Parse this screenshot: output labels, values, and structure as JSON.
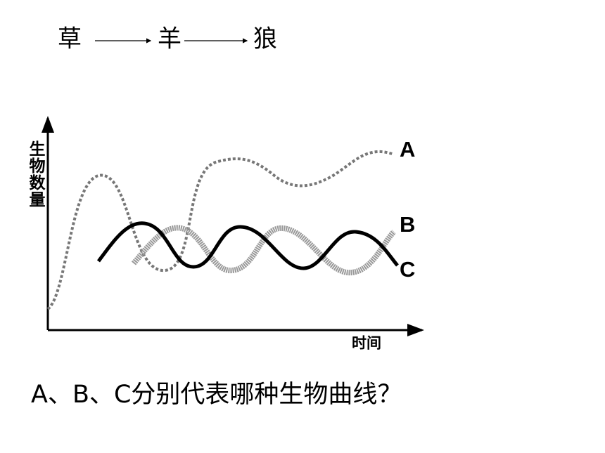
{
  "food_chain": [
    "草",
    "羊",
    "狼"
  ],
  "graph": {
    "y_label": "生物数量",
    "x_label": "时间",
    "curve_labels": [
      "A",
      "B",
      "C"
    ]
  },
  "question": "A、B、C分别代表哪种生物曲线？"
}
